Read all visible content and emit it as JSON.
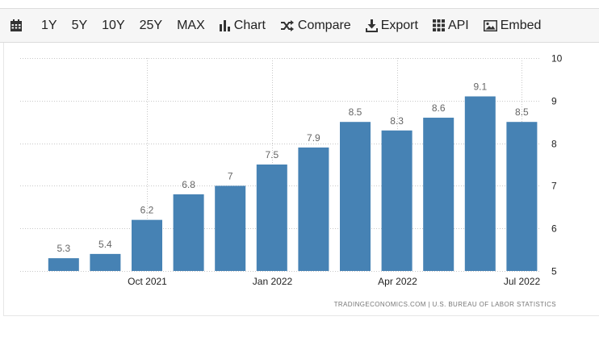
{
  "toolbar": {
    "items": [
      {
        "label": "1Y"
      },
      {
        "label": "5Y"
      },
      {
        "label": "10Y"
      },
      {
        "label": "25Y"
      },
      {
        "label": "MAX"
      },
      {
        "label": "Chart"
      },
      {
        "label": "Compare"
      },
      {
        "label": "Export"
      },
      {
        "label": "API"
      },
      {
        "label": "Embed"
      }
    ]
  },
  "icons": {
    "calendar": "calendar-icon",
    "chart": "bar-chart-icon",
    "compare": "shuffle-icon",
    "export": "download-icon",
    "api": "grid-icon",
    "embed": "image-icon"
  },
  "colors": {
    "bar": "#4682b4",
    "grid": "#c8c8c8"
  },
  "chart_data": {
    "type": "bar",
    "categories": [
      "2021-08",
      "2021-09",
      "2021-10",
      "2021-11",
      "2021-12",
      "2022-01",
      "2022-02",
      "2022-03",
      "2022-04",
      "2022-05",
      "2022-06",
      "2022-07"
    ],
    "values": [
      5.3,
      5.4,
      6.2,
      6.8,
      7,
      7.5,
      7.9,
      8.5,
      8.3,
      8.6,
      9.1,
      8.5
    ],
    "value_labels": [
      "5.3",
      "5.4",
      "6.2",
      "6.8",
      "7",
      "7.5",
      "7.9",
      "8.5",
      "8.3",
      "8.6",
      "9.1",
      "8.5"
    ],
    "x_tick_labels": [
      {
        "category": "2021-10",
        "label": "Oct 2021"
      },
      {
        "category": "2022-01",
        "label": "Jan 2022"
      },
      {
        "category": "2022-04",
        "label": "Apr 2022"
      },
      {
        "category": "2022-07",
        "label": "Jul 2022"
      }
    ],
    "y_ticks": [
      5,
      6,
      7,
      8,
      9,
      10
    ],
    "ylim": [
      5,
      10
    ],
    "y_axis_position": "right",
    "grid": true,
    "title": "",
    "xlabel": "",
    "ylabel": "",
    "source": "TRADINGECONOMICS.COM  |  U.S. BUREAU OF LABOR STATISTICS"
  }
}
